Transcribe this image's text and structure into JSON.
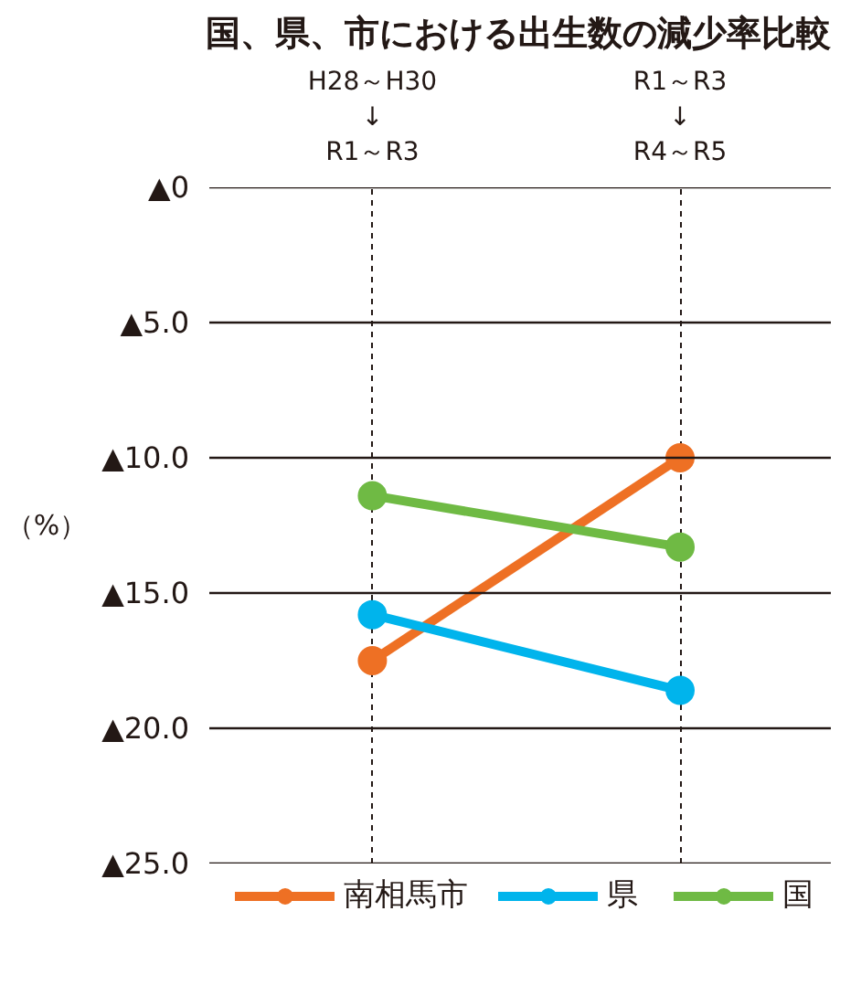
{
  "chart_data": {
    "type": "line",
    "title": "国、県、市における出生数の減少率比較",
    "ylabel": "（%）",
    "categories": [
      "H28～H30\n↓\nR1～R3",
      "R1～R3\n↓\nR4～R5"
    ],
    "series": [
      {
        "name": "南相馬市",
        "color": "#ee7024",
        "values": [
          -17.5,
          -10.0
        ]
      },
      {
        "name": "県",
        "color": "#00b4ec",
        "values": [
          -15.8,
          -18.6
        ]
      },
      {
        "name": "国",
        "color": "#6fba44",
        "values": [
          -11.4,
          -13.3
        ]
      }
    ],
    "ylim": [
      -25,
      0
    ],
    "yticks": [
      {
        "value": 0,
        "label": "▲0"
      },
      {
        "value": -5,
        "label": "▲5.0"
      },
      {
        "value": -10,
        "label": "▲10.0"
      },
      {
        "value": -15,
        "label": "▲15.0"
      },
      {
        "value": -20,
        "label": "▲20.0"
      },
      {
        "value": -25,
        "label": "▲25.0"
      }
    ],
    "grid": true,
    "legend": "bottom",
    "marker": "circle",
    "line_style": "solid"
  }
}
